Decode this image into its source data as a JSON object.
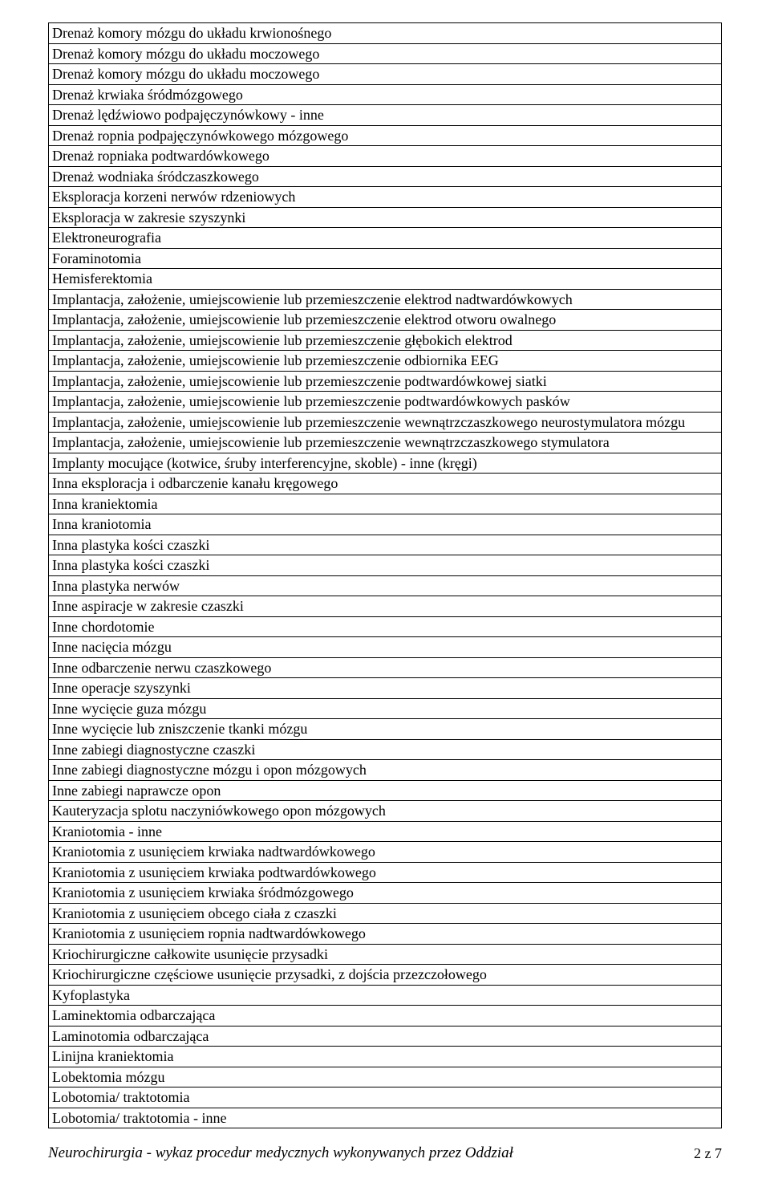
{
  "footer": {
    "title": "Neurochirurgia - wykaz procedur medycznych wykonywanych przez Oddział",
    "page": "2 z 7"
  },
  "rows": [
    "Drenaż komory mózgu do układu krwionośnego",
    "Drenaż komory mózgu do układu moczowego",
    "Drenaż komory mózgu do układu moczowego",
    "Drenaż krwiaka śródmózgowego",
    "Drenaż lędźwiowo podpajęczynówkowy - inne",
    "Drenaż ropnia podpajęczynówkowego mózgowego",
    "Drenaż ropniaka podtwardówkowego",
    "Drenaż wodniaka śródczaszkowego",
    "Eksploracja korzeni nerwów rdzeniowych",
    "Eksploracja w zakresie szyszynki",
    "Elektroneurografia",
    "Foraminotomia",
    "Hemisferektomia",
    "Implantacja, założenie, umiejscowienie lub przemieszczenie elektrod nadtwardówkowych",
    "Implantacja, założenie, umiejscowienie lub przemieszczenie elektrod otworu owalnego",
    "Implantacja, założenie, umiejscowienie lub przemieszczenie głębokich elektrod",
    "Implantacja, założenie, umiejscowienie lub przemieszczenie odbiornika EEG",
    "Implantacja, założenie, umiejscowienie lub przemieszczenie podtwardówkowej siatki",
    "Implantacja, założenie, umiejscowienie lub przemieszczenie podtwardówkowych pasków",
    "Implantacja, założenie, umiejscowienie lub przemieszczenie wewnątrzczaszkowego neurostymulatora mózgu",
    "Implantacja, założenie, umiejscowienie lub przemieszczenie wewnątrzczaszkowego stymulatora",
    "Implanty mocujące (kotwice, śruby interferencyjne, skoble) - inne (kręgi)",
    "Inna eksploracja i odbarczenie kanału kręgowego",
    "Inna kraniektomia",
    "Inna kraniotomia",
    "Inna plastyka kości czaszki",
    "Inna plastyka kości czaszki",
    "Inna plastyka nerwów",
    "Inne aspiracje w zakresie czaszki",
    "Inne chordotomie",
    "Inne nacięcia mózgu",
    "Inne odbarczenie nerwu czaszkowego",
    "Inne operacje szyszynki",
    "Inne wycięcie guza mózgu",
    "Inne wycięcie lub zniszczenie tkanki mózgu",
    "Inne zabiegi diagnostyczne czaszki",
    "Inne zabiegi diagnostyczne mózgu i opon mózgowych",
    "Inne zabiegi naprawcze opon",
    "Kauteryzacja splotu naczyniówkowego opon mózgowych",
    "Kraniotomia - inne",
    "Kraniotomia z usunięciem krwiaka nadtwardówkowego",
    "Kraniotomia z usunięciem krwiaka podtwardówkowego",
    "Kraniotomia z usunięciem krwiaka śródmózgowego",
    "Kraniotomia z usunięciem obcego ciała z czaszki",
    "Kraniotomia z usunięciem ropnia nadtwardówkowego",
    "Kriochirurgiczne całkowite usunięcie przysadki",
    "Kriochirurgiczne częściowe usunięcie przysadki, z dojścia przezczołowego",
    "Kyfoplastyka",
    "Laminektomia odbarczająca",
    "Laminotomia odbarczająca",
    "Linijna kraniektomia",
    "Lobektomia mózgu",
    "Lobotomia/ traktotomia",
    "Lobotomia/ traktotomia - inne"
  ]
}
